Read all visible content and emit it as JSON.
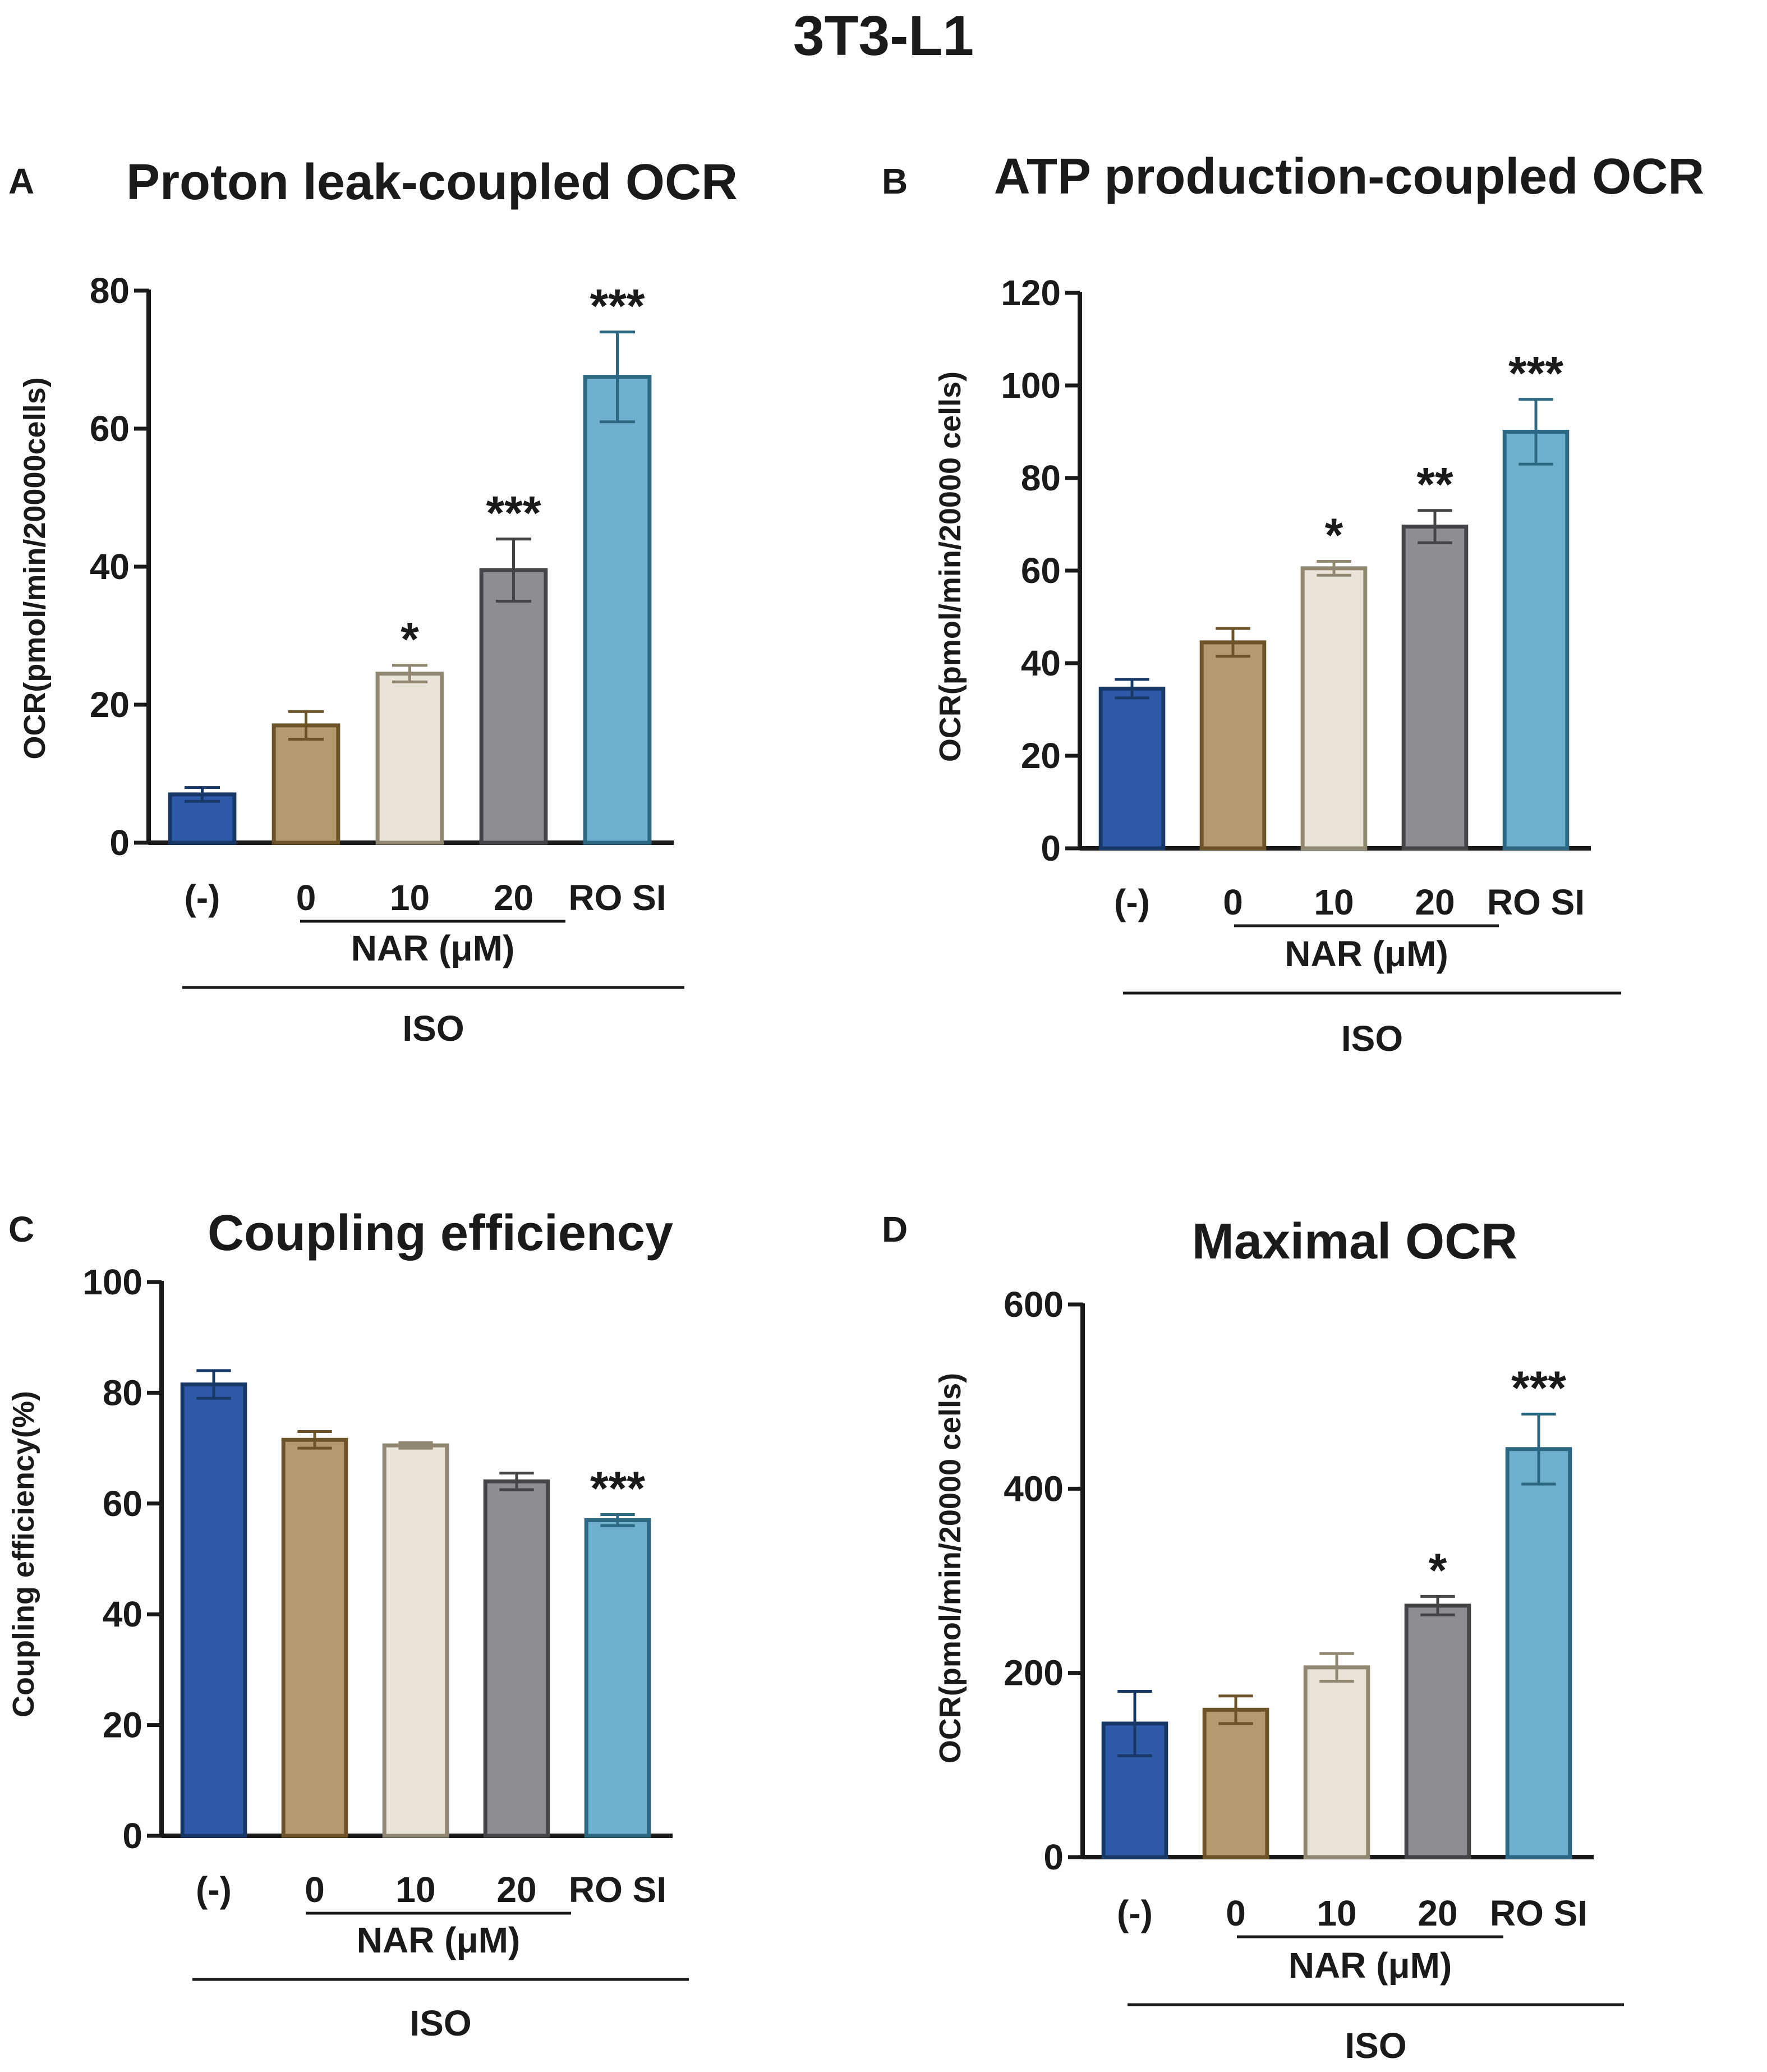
{
  "figure_title": "3T3-L1",
  "colors": {
    "text": "#1a1a1a",
    "axis": "#1a1a1a",
    "bar_fills": [
      "#2d5ba8",
      "#b49b6e",
      "#e9e4d8",
      "#8e8e90",
      "#6fb0cf"
    ],
    "bar_strokes": [
      "#183868",
      "#6d5428",
      "#918872",
      "#454547",
      "#2d6883"
    ],
    "errorbar_colors": [
      "#183868",
      "#6d5428",
      "#918872",
      "#454547",
      "#2d6883"
    ]
  },
  "chart_data": [
    {
      "panel": "A",
      "type": "bar",
      "title": "Proton leak-coupled OCR",
      "ylabel": "OCR(pmol/min/20000cells)",
      "xlabel": "",
      "ylim": [
        0,
        80
      ],
      "yticks": [
        0,
        20,
        40,
        60,
        80
      ],
      "categories": [
        "(-)",
        "0",
        "10",
        "20",
        "RO SI"
      ],
      "values": [
        7,
        17,
        24.5,
        39.5,
        67.5
      ],
      "errors": [
        1,
        2,
        1.2,
        4.5,
        6.5
      ],
      "significance": [
        "",
        "",
        "*",
        "***",
        "***"
      ],
      "nar_label": "NAR (μM)",
      "iso_label": "ISO"
    },
    {
      "panel": "B",
      "type": "bar",
      "title": "ATP production-coupled OCR",
      "ylabel": "OCR(pmol/min/20000 cells)",
      "xlabel": "",
      "ylim": [
        0,
        120
      ],
      "yticks": [
        0,
        20,
        40,
        60,
        80,
        100,
        120
      ],
      "categories": [
        "(-)",
        "0",
        "10",
        "20",
        "RO SI"
      ],
      "values": [
        34.5,
        44.5,
        60.5,
        69.5,
        90
      ],
      "errors": [
        2,
        3,
        1.5,
        3.5,
        7
      ],
      "significance": [
        "",
        "",
        "*",
        "**",
        "***"
      ],
      "nar_label": "NAR (μM)",
      "iso_label": "ISO"
    },
    {
      "panel": "C",
      "type": "bar",
      "title": "Coupling efficiency",
      "ylabel": "Coupling efficiency(%)",
      "xlabel": "",
      "ylim": [
        0,
        100
      ],
      "yticks": [
        0,
        20,
        40,
        60,
        80,
        100
      ],
      "categories": [
        "(-)",
        "0",
        "10",
        "20",
        "RO SI"
      ],
      "values": [
        81.5,
        71.5,
        70.5,
        64,
        57
      ],
      "errors": [
        2.5,
        1.5,
        0.5,
        1.5,
        1
      ],
      "significance": [
        "",
        "",
        "",
        "",
        "***"
      ],
      "nar_label": "NAR (μM)",
      "iso_label": "ISO"
    },
    {
      "panel": "D",
      "type": "bar",
      "title": "Maximal OCR",
      "ylabel": "OCR(pmol/min/20000 cells)",
      "xlabel": "",
      "ylim": [
        0,
        600
      ],
      "yticks": [
        0,
        200,
        400,
        600
      ],
      "categories": [
        "(-)",
        "0",
        "10",
        "20",
        "RO SI"
      ],
      "values": [
        145,
        160,
        206,
        273,
        443
      ],
      "errors": [
        35,
        15,
        15,
        10,
        38
      ],
      "significance": [
        "",
        "",
        "",
        "*",
        "***"
      ],
      "nar_label": "NAR (μM)",
      "iso_label": "ISO"
    }
  ]
}
